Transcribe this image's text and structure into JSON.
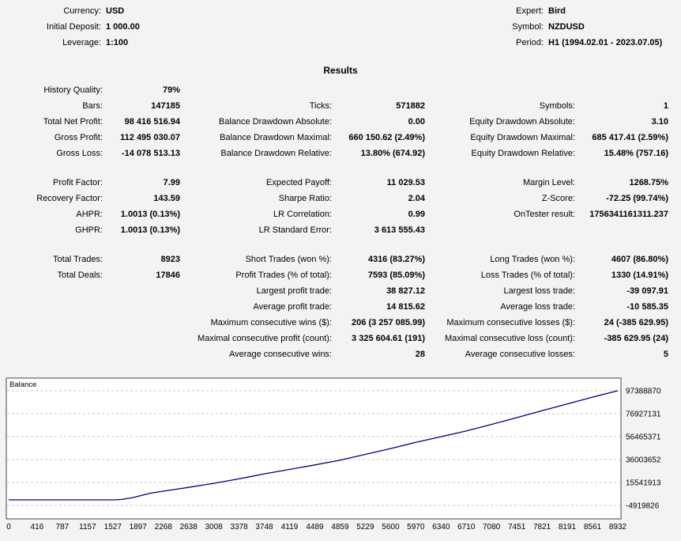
{
  "header": {
    "left": [
      {
        "label": "Currency:",
        "value": "USD"
      },
      {
        "label": "Initial Deposit:",
        "value": "1 000.00"
      },
      {
        "label": "Leverage:",
        "value": "1:100"
      }
    ],
    "right": [
      {
        "label": "Expert:",
        "value": "Bird"
      },
      {
        "label": "Symbol:",
        "value": "NZDUSD"
      },
      {
        "label": "Period:",
        "value": "H1 (1994.02.01 - 2023.07.05)"
      }
    ]
  },
  "results_title": "Results",
  "stats_rows": [
    {
      "cells": [
        "History Quality:",
        "79%",
        "",
        "",
        "",
        ""
      ]
    },
    {
      "cells": [
        "Bars:",
        "147185",
        "Ticks:",
        "571882",
        "Symbols:",
        "1"
      ]
    },
    {
      "cells": [
        "Total Net Profit:",
        "98 416 516.94",
        "Balance Drawdown Absolute:",
        "0.00",
        "Equity Drawdown Absolute:",
        "3.10"
      ]
    },
    {
      "cells": [
        "Gross Profit:",
        "112 495 030.07",
        "Balance Drawdown Maximal:",
        "660 150.62 (2.49%)",
        "Equity Drawdown Maximal:",
        "685 417.41 (2.59%)"
      ]
    },
    {
      "cells": [
        "Gross Loss:",
        "-14 078 513.13",
        "Balance Drawdown Relative:",
        "13.80% (674.92)",
        "Equity Drawdown Relative:",
        "15.48% (757.16)"
      ]
    },
    {
      "cells": [
        "",
        "",
        "",
        "",
        "",
        ""
      ]
    },
    {
      "cells": [
        "Profit Factor:",
        "7.99",
        "Expected Payoff:",
        "11 029.53",
        "Margin Level:",
        "1268.75%"
      ]
    },
    {
      "cells": [
        "Recovery Factor:",
        "143.59",
        "Sharpe Ratio:",
        "2.04",
        "Z-Score:",
        "-72.25 (99.74%)"
      ]
    },
    {
      "cells": [
        "AHPR:",
        "1.0013 (0.13%)",
        "LR Correlation:",
        "0.99",
        "OnTester result:",
        "1756341161311.237"
      ]
    },
    {
      "cells": [
        "GHPR:",
        "1.0013 (0.13%)",
        "LR Standard Error:",
        "3 613 555.43",
        "",
        ""
      ]
    },
    {
      "cells": [
        "",
        "",
        "",
        "",
        "",
        ""
      ]
    },
    {
      "cells": [
        "Total Trades:",
        "8923",
        "Short Trades (won %):",
        "4316 (83.27%)",
        "Long Trades (won %):",
        "4607 (86.80%)"
      ]
    },
    {
      "cells": [
        "Total Deals:",
        "17846",
        "Profit Trades (% of total):",
        "7593 (85.09%)",
        "Loss Trades (% of total):",
        "1330 (14.91%)"
      ]
    },
    {
      "cells": [
        "",
        "",
        "Largest profit trade:",
        "38 827.12",
        "Largest loss trade:",
        "-39 097.91"
      ]
    },
    {
      "cells": [
        "",
        "",
        "Average profit trade:",
        "14 815.62",
        "Average loss trade:",
        "-10 585.35"
      ]
    },
    {
      "cells": [
        "",
        "",
        "Maximum consecutive wins ($):",
        "206 (3 257 085.99)",
        "Maximum consecutive losses ($):",
        "24 (-385 629.95)"
      ]
    },
    {
      "cells": [
        "",
        "",
        "Maximal consecutive profit (count):",
        "3 325 604.61 (191)",
        "Maximal consecutive loss (count):",
        "-385 629.95 (24)"
      ]
    },
    {
      "cells": [
        "",
        "",
        "Average consecutive wins:",
        "28",
        "Average consecutive losses:",
        "5"
      ]
    }
  ],
  "chart_data": {
    "type": "line",
    "title": "Balance",
    "line_color": "#000080",
    "grid_color": "#c9c9c9",
    "border_color": "#444444",
    "plot_background": "#ffffff",
    "legend_position": "top-left",
    "grid": "horizontal-dashed",
    "y_ticks": [
      97388870,
      76927131,
      56465371,
      36003652,
      15541913,
      -4919826
    ],
    "y_tick_labels": [
      "97388870",
      "76927131",
      "56465371",
      "36003652",
      "15541913",
      "-4919826"
    ],
    "x_ticks": [
      0,
      416,
      787,
      1157,
      1527,
      1897,
      2268,
      2638,
      3008,
      3378,
      3748,
      4119,
      4489,
      4859,
      5229,
      5600,
      5970,
      6340,
      6710,
      7080,
      7451,
      7821,
      8191,
      8561,
      8932
    ],
    "xlim": [
      0,
      8932
    ],
    "ylim": [
      -16900000,
      108700000
    ],
    "points": [
      [
        0,
        1000
      ],
      [
        1527,
        1000
      ],
      [
        1650,
        400000
      ],
      [
        1800,
        1800000
      ],
      [
        1897,
        3200000
      ],
      [
        2080,
        6000000
      ],
      [
        2268,
        7800000
      ],
      [
        2450,
        9500000
      ],
      [
        2638,
        11200000
      ],
      [
        3008,
        14800000
      ],
      [
        3378,
        18800000
      ],
      [
        3560,
        21000000
      ],
      [
        3748,
        23200000
      ],
      [
        4119,
        27200000
      ],
      [
        4489,
        31200000
      ],
      [
        4859,
        35400000
      ],
      [
        5229,
        40600000
      ],
      [
        5420,
        43300000
      ],
      [
        5600,
        45800000
      ],
      [
        5970,
        51300000
      ],
      [
        6340,
        56400000
      ],
      [
        6710,
        61500000
      ],
      [
        7080,
        67300000
      ],
      [
        7451,
        73400000
      ],
      [
        7821,
        79600000
      ],
      [
        8191,
        85600000
      ],
      [
        8561,
        91700000
      ],
      [
        8932,
        97388870
      ]
    ]
  }
}
